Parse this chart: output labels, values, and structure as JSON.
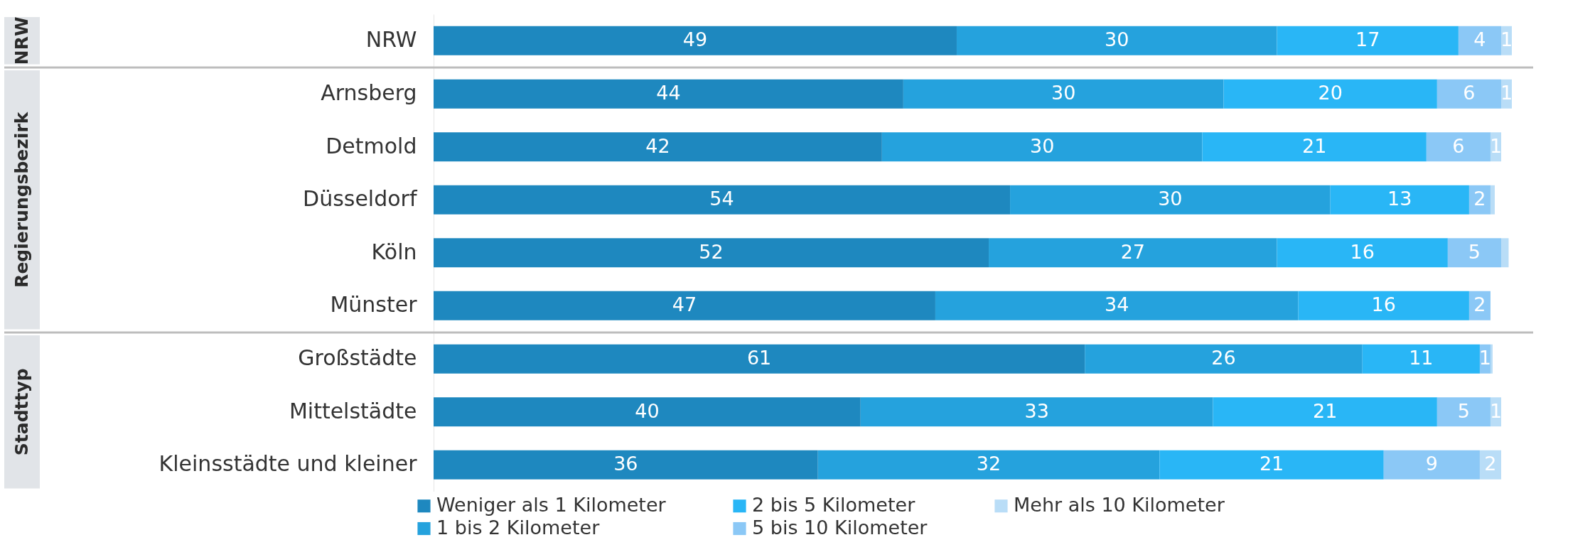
{
  "chart_data": [
    {
      "type": "bar",
      "orientation": "horizontal",
      "stacked": true,
      "ylabel": "NRW",
      "legend": "bottom",
      "categories": [
        "NRW"
      ],
      "series": [
        {
          "name": "Weniger als 1 Kilometer",
          "color": "#1e88bf",
          "values": [
            49
          ],
          "value_labels": [
            "49"
          ]
        },
        {
          "name": "1 bis 2 Kilometer",
          "color": "#25a2dd",
          "values": [
            30
          ],
          "value_labels": [
            "30"
          ]
        },
        {
          "name": "2 bis 5 Kilometer",
          "color": "#29b6f6",
          "values": [
            17
          ],
          "value_labels": [
            "17"
          ]
        },
        {
          "name": "5 bis 10 Kilometer",
          "color": "#8bc8f6",
          "values": [
            4
          ],
          "value_labels": [
            "4"
          ]
        },
        {
          "name": "Mehr als 10 Kilometer",
          "color": "#b9ddf7",
          "values": [
            1
          ],
          "value_labels": [
            "1"
          ]
        }
      ]
    },
    {
      "type": "bar",
      "orientation": "horizontal",
      "stacked": true,
      "ylabel": "Regierungsbezirk",
      "categories": [
        "Arnsberg",
        "Detmold",
        "Düsseldorf",
        "Köln",
        "Münster"
      ],
      "series": [
        {
          "color": "#1e88bf",
          "values": [
            44,
            42,
            54,
            52,
            47
          ],
          "value_labels": [
            "44",
            "42",
            "54",
            "52",
            "47"
          ]
        },
        {
          "color": "#25a2dd",
          "values": [
            30,
            30,
            30,
            27,
            34
          ],
          "value_labels": [
            "30",
            "30",
            "30",
            "27",
            "34"
          ]
        },
        {
          "color": "#29b6f6",
          "values": [
            20,
            21,
            13,
            16,
            16
          ],
          "value_labels": [
            "20",
            "21",
            "13",
            "16",
            "16"
          ]
        },
        {
          "color": "#8bc8f6",
          "values": [
            6,
            6,
            2,
            5,
            2
          ],
          "value_labels": [
            "6",
            "6",
            "2",
            "5",
            "2"
          ]
        },
        {
          "color": "#b9ddf7",
          "values": [
            1,
            1,
            0.4,
            0.7,
            null
          ],
          "value_labels": [
            "1",
            "1",
            null,
            null,
            null
          ]
        }
      ]
    },
    {
      "type": "bar",
      "orientation": "horizontal",
      "stacked": true,
      "ylabel": "Stadttyp",
      "categories": [
        "Großstädte",
        "Mittelstädte",
        "Kleinsstädte und kleiner"
      ],
      "series": [
        {
          "color": "#1e88bf",
          "values": [
            61,
            40,
            36
          ],
          "value_labels": [
            "61",
            "40",
            "36"
          ]
        },
        {
          "color": "#25a2dd",
          "values": [
            26,
            33,
            32
          ],
          "value_labels": [
            "26",
            "33",
            "32"
          ]
        },
        {
          "color": "#29b6f6",
          "values": [
            11,
            21,
            21
          ],
          "value_labels": [
            "11",
            "21",
            "21"
          ]
        },
        {
          "color": "#8bc8f6",
          "values": [
            1,
            5,
            9
          ],
          "value_labels": [
            "1",
            "5",
            "9"
          ]
        },
        {
          "color": "#b9ddf7",
          "values": [
            0.2,
            1,
            2
          ],
          "value_labels": [
            null,
            "1",
            "2"
          ]
        }
      ]
    }
  ]
}
